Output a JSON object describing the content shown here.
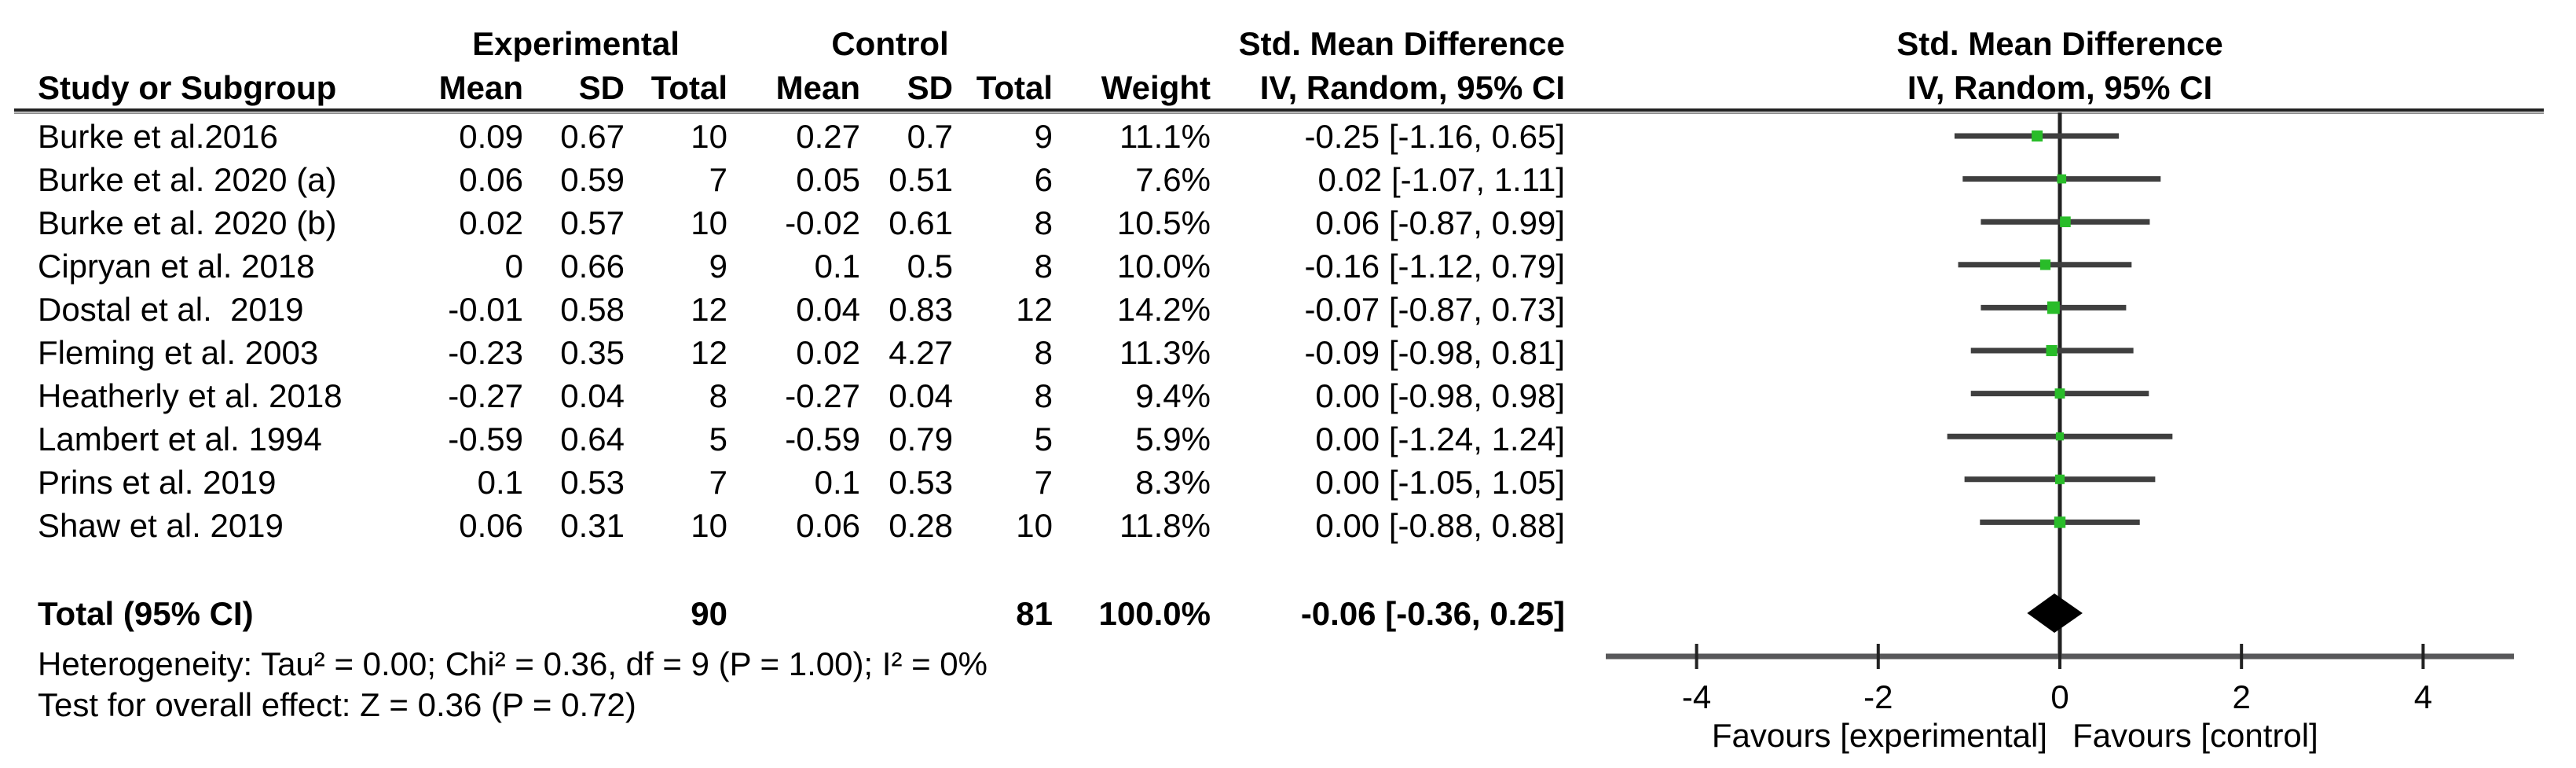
{
  "table": {
    "group_headers": {
      "experimental": "Experimental",
      "control": "Control",
      "smd_table": "Std. Mean Difference",
      "smd_plot": "Std. Mean Difference"
    },
    "col_headers": {
      "study": "Study or Subgroup",
      "e_mean": "Mean",
      "e_sd": "SD",
      "e_total": "Total",
      "c_mean": "Mean",
      "c_sd": "SD",
      "c_total": "Total",
      "weight": "Weight",
      "ci": "IV, Random, 95% CI",
      "ci_plot": "IV, Random, 95% CI"
    },
    "rows": [
      {
        "study": "Burke et al.2016",
        "e_mean": "0.09",
        "e_sd": "0.67",
        "e_total": "10",
        "c_mean": "0.27",
        "c_sd": "0.7",
        "c_total": "9",
        "weight": "11.1%",
        "ci": "-0.25 [-1.16, 0.65]"
      },
      {
        "study": "Burke et al. 2020 (a)",
        "e_mean": "0.06",
        "e_sd": "0.59",
        "e_total": "7",
        "c_mean": "0.05",
        "c_sd": "0.51",
        "c_total": "6",
        "weight": "7.6%",
        "ci": "0.02 [-1.07, 1.11]"
      },
      {
        "study": "Burke et al. 2020 (b)",
        "e_mean": "0.02",
        "e_sd": "0.57",
        "e_total": "10",
        "c_mean": "-0.02",
        "c_sd": "0.61",
        "c_total": "8",
        "weight": "10.5%",
        "ci": "0.06 [-0.87, 0.99]"
      },
      {
        "study": "Cipryan et al. 2018",
        "e_mean": "0",
        "e_sd": "0.66",
        "e_total": "9",
        "c_mean": "0.1",
        "c_sd": "0.5",
        "c_total": "8",
        "weight": "10.0%",
        "ci": "-0.16 [-1.12, 0.79]"
      },
      {
        "study": "Dostal et al.  2019",
        "e_mean": "-0.01",
        "e_sd": "0.58",
        "e_total": "12",
        "c_mean": "0.04",
        "c_sd": "0.83",
        "c_total": "12",
        "weight": "14.2%",
        "ci": "-0.07 [-0.87, 0.73]"
      },
      {
        "study": "Fleming et al. 2003",
        "e_mean": "-0.23",
        "e_sd": "0.35",
        "e_total": "12",
        "c_mean": "0.02",
        "c_sd": "4.27",
        "c_total": "8",
        "weight": "11.3%",
        "ci": "-0.09 [-0.98, 0.81]"
      },
      {
        "study": "Heatherly et al. 2018",
        "e_mean": "-0.27",
        "e_sd": "0.04",
        "e_total": "8",
        "c_mean": "-0.27",
        "c_sd": "0.04",
        "c_total": "8",
        "weight": "9.4%",
        "ci": "0.00 [-0.98, 0.98]"
      },
      {
        "study": "Lambert et al. 1994",
        "e_mean": "-0.59",
        "e_sd": "0.64",
        "e_total": "5",
        "c_mean": "-0.59",
        "c_sd": "0.79",
        "c_total": "5",
        "weight": "5.9%",
        "ci": "0.00 [-1.24, 1.24]"
      },
      {
        "study": "Prins et al. 2019",
        "e_mean": "0.1",
        "e_sd": "0.53",
        "e_total": "7",
        "c_mean": "0.1",
        "c_sd": "0.53",
        "c_total": "7",
        "weight": "8.3%",
        "ci": "0.00 [-1.05, 1.05]"
      },
      {
        "study": "Shaw et al. 2019",
        "e_mean": "0.06",
        "e_sd": "0.31",
        "e_total": "10",
        "c_mean": "0.06",
        "c_sd": "0.28",
        "c_total": "10",
        "weight": "11.8%",
        "ci": "0.00 [-0.88, 0.88]"
      }
    ],
    "total": {
      "label": "Total (95% CI)",
      "e_total": "90",
      "c_total": "81",
      "weight": "100.0%",
      "ci": "-0.06 [-0.36, 0.25]"
    },
    "footnotes": {
      "heterogeneity": "Heterogeneity: Tau² = 0.00; Chi² = 0.36, df = 9 (P = 1.00); I² = 0%",
      "overall_effect": "Test for overall effect: Z = 0.36 (P = 0.72)"
    }
  },
  "chart_data": {
    "type": "scatter",
    "subtype": "forest-plot",
    "title": "Std. Mean Difference",
    "subtitle": "IV, Random, 95% CI",
    "effect_measure": "Std. Mean Difference, IV, Random, 95% CI",
    "marker_color": "#29bc29",
    "diamond_color": "#000000",
    "x_axis": {
      "range": [
        -5,
        5
      ],
      "ticks": [
        -4,
        -2,
        0,
        2,
        4
      ],
      "favours_left": "Favours [experimental]",
      "favours_right": "Favours [control]"
    },
    "studies": [
      {
        "name": "Burke et al.2016",
        "est": -0.25,
        "lo": -1.16,
        "hi": 0.65,
        "weight": 11.1
      },
      {
        "name": "Burke et al. 2020 (a)",
        "est": 0.02,
        "lo": -1.07,
        "hi": 1.11,
        "weight": 7.6
      },
      {
        "name": "Burke et al. 2020 (b)",
        "est": 0.06,
        "lo": -0.87,
        "hi": 0.99,
        "weight": 10.5
      },
      {
        "name": "Cipryan et al. 2018",
        "est": -0.16,
        "lo": -1.12,
        "hi": 0.79,
        "weight": 10.0
      },
      {
        "name": "Dostal et al.  2019",
        "est": -0.07,
        "lo": -0.87,
        "hi": 0.73,
        "weight": 14.2
      },
      {
        "name": "Fleming et al. 2003",
        "est": -0.09,
        "lo": -0.98,
        "hi": 0.81,
        "weight": 11.3
      },
      {
        "name": "Heatherly et al. 2018",
        "est": 0.0,
        "lo": -0.98,
        "hi": 0.98,
        "weight": 9.4
      },
      {
        "name": "Lambert et al. 1994",
        "est": 0.0,
        "lo": -1.24,
        "hi": 1.24,
        "weight": 5.9
      },
      {
        "name": "Prins et al. 2019",
        "est": 0.0,
        "lo": -1.05,
        "hi": 1.05,
        "weight": 8.3
      },
      {
        "name": "Shaw et al. 2019",
        "est": 0.0,
        "lo": -0.88,
        "hi": 0.88,
        "weight": 11.8
      }
    ],
    "total": {
      "name": "Total (95% CI)",
      "est": -0.06,
      "lo": -0.36,
      "hi": 0.25
    }
  }
}
